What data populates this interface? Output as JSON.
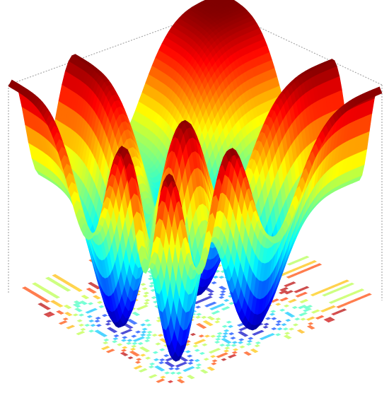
{
  "chart_data": {
    "type": "surface",
    "grid": true,
    "colormap": [
      "#00008f",
      "#0000ff",
      "#0080ff",
      "#00ffff",
      "#80ff80",
      "#ffff00",
      "#ff8000",
      "#ff0000",
      "#800000"
    ]
  }
}
